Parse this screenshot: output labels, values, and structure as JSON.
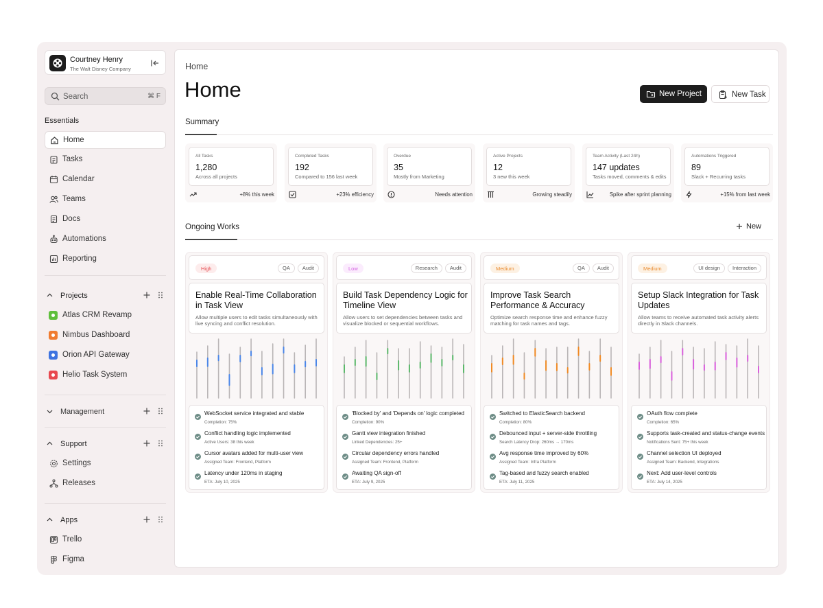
{
  "account": {
    "name": "Courtney Henry",
    "org": "The Walt Disney Company"
  },
  "search": {
    "placeholder": "Search",
    "shortcut": "⌘ F"
  },
  "sidebar": {
    "essentials_title": "Essentials",
    "nav": [
      {
        "label": "Home",
        "icon": "home-icon",
        "active": true
      },
      {
        "label": "Tasks",
        "icon": "tasks-icon"
      },
      {
        "label": "Calendar",
        "icon": "calendar-icon"
      },
      {
        "label": "Teams",
        "icon": "teams-icon"
      },
      {
        "label": "Docs",
        "icon": "docs-icon"
      },
      {
        "label": "Automations",
        "icon": "automations-icon"
      },
      {
        "label": "Reporting",
        "icon": "reporting-icon"
      }
    ],
    "projects_title": "Projects",
    "projects": [
      {
        "label": "Atlas CRM Revamp",
        "color": "#5fbf3c"
      },
      {
        "label": "Nimbus Dashboard",
        "color": "#f07b2f"
      },
      {
        "label": "Orion API Gateway",
        "color": "#3d73e0"
      },
      {
        "label": "Helio Task System",
        "color": "#e8484f"
      }
    ],
    "management_title": "Management",
    "support_title": "Support",
    "support": [
      {
        "label": "Settings",
        "icon": "settings-icon"
      },
      {
        "label": "Releases",
        "icon": "releases-icon"
      }
    ],
    "apps_title": "Apps",
    "apps": [
      {
        "label": "Trello",
        "icon": "trello-icon"
      },
      {
        "label": "Figma",
        "icon": "figma-icon"
      }
    ]
  },
  "header": {
    "breadcrumb": "Home",
    "title": "Home",
    "new_project": "New Project",
    "new_task": "New Task"
  },
  "summary": {
    "tab": "Summary",
    "stats": [
      {
        "label": "All Tasks",
        "value": "1,280",
        "sub": "Across all projects",
        "footer": "+8% this week",
        "icon": "trend-up-icon"
      },
      {
        "label": "Completed Tasks",
        "value": "192",
        "sub": "Compared to 156 last week",
        "footer": "+23% efficiency",
        "icon": "check-square-icon"
      },
      {
        "label": "Overdue",
        "value": "35",
        "sub": "Mostly from Marketing",
        "footer": "Needs attention",
        "icon": "alert-circle-icon"
      },
      {
        "label": "Active Projects",
        "value": "12",
        "sub": "3 new this week",
        "footer": "Growing steadily",
        "icon": "flask-icon"
      },
      {
        "label": "Team Activity (Last 24h)",
        "value": "147 updates",
        "sub": "Tasks moved, comments & edits",
        "footer": "Spike after sprint planning",
        "icon": "line-chart-icon"
      },
      {
        "label": "Automations Triggered",
        "value": "89",
        "sub": "Slack + Recurring tasks",
        "footer": "+15% from last week",
        "icon": "bolt-icon"
      }
    ]
  },
  "ongoing": {
    "tab": "Ongoing Works",
    "new_label": "New",
    "cards": [
      {
        "priority": "High",
        "priority_color": "#e5484d",
        "priority_bg": "#fdecec",
        "tags": [
          "QA",
          "Audit"
        ],
        "title": "Enable Real-Time Collaboration in Task View",
        "desc": "Allow multiple users to edit tasks simultaneously with live syncing and conflict resolution.",
        "accent": "#4a86e8",
        "items": [
          {
            "text": "WebSocket service integrated and stable",
            "sub": "Completion: 75%"
          },
          {
            "text": "Conflict handling logic implemented",
            "sub": "Active Users: 38 this week"
          },
          {
            "text": "Cursor avatars added for multi-user view",
            "sub": "Assigned Team: Frontend, Platform"
          },
          {
            "text": "Latency under 120ms in staging",
            "sub": "ETA: July 10, 2025"
          }
        ]
      },
      {
        "priority": "Low",
        "priority_color": "#d462e0",
        "priority_bg": "#fbecfd",
        "tags": [
          "Research",
          "Audit"
        ],
        "title": "Build Task Dependency Logic for Timeline View",
        "desc": "Allow users to set dependencies between tasks and visualize blocked or sequential workflows.",
        "accent": "#5bb86a",
        "items": [
          {
            "text": "'Blocked by' and 'Depends on' logic completed",
            "sub": "Completion: 90%"
          },
          {
            "text": "Gantt view integration finished",
            "sub": "Linked Dependencies: 25+"
          },
          {
            "text": "Circular dependency errors handled",
            "sub": "Assigned Team: Frontend, Platform"
          },
          {
            "text": "Awaiting QA sign-off",
            "sub": "ETA: July 9, 2025"
          }
        ]
      },
      {
        "priority": "Medium",
        "priority_color": "#e98a2e",
        "priority_bg": "#fdf1e3",
        "tags": [
          "QA",
          "Audit"
        ],
        "title": "Improve Task Search Performance & Accuracy",
        "desc": "Optimize search response time and enhance fuzzy matching for task names and tags.",
        "accent": "#f08a24",
        "items": [
          {
            "text": "Switched to ElasticSearch backend",
            "sub": "Completion: 80%"
          },
          {
            "text": "Debounced input + server-side throttling",
            "sub": "Search Latency Drop: 260ms → 170ms"
          },
          {
            "text": "Avg response time improved by 60%",
            "sub": "Assigned Team: Infra Platform"
          },
          {
            "text": "Tag-based and fuzzy search enabled",
            "sub": "ETA: July 11, 2025"
          }
        ]
      },
      {
        "priority": "Medium",
        "priority_color": "#e98a2e",
        "priority_bg": "#fdf1e3",
        "tags": [
          "UI design",
          "Interaction"
        ],
        "title": "Setup Slack Integration for Task Updates",
        "desc": "Allow teams to receive automated task activity alerts directly in Slack channels.",
        "accent": "#d95fdc",
        "items": [
          {
            "text": "OAuth flow complete",
            "sub": "Completion: 65%"
          },
          {
            "text": "Supports task-created and status-change events",
            "sub": "Notifications Sent: 75+ this week"
          },
          {
            "text": "Channel selection UI deployed",
            "sub": "Assigned Team: Backend, Integrations"
          },
          {
            "text": "Next: Add user-level controls",
            "sub": "ETA: July 14, 2025"
          }
        ]
      }
    ]
  }
}
